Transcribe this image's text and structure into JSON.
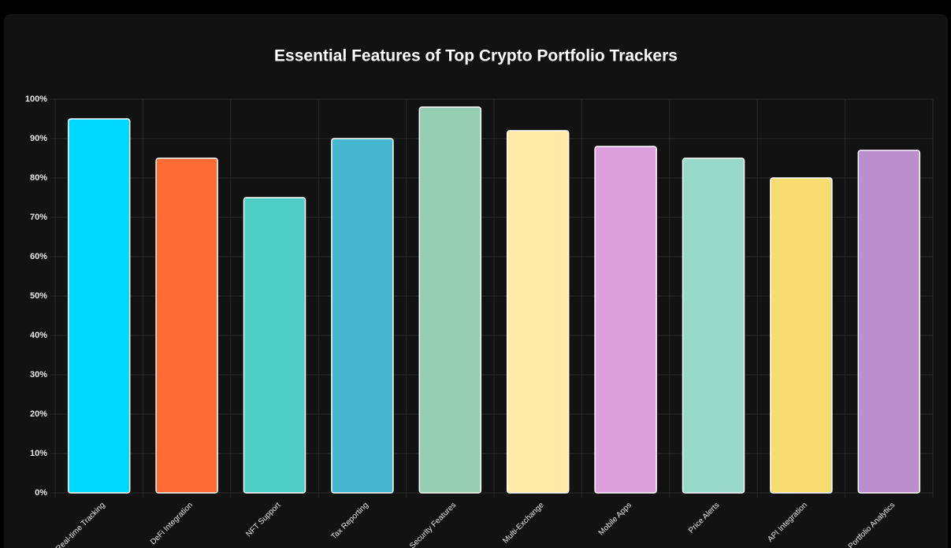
{
  "chart_data": {
    "type": "bar",
    "title": "Essential Features of Top Crypto Portfolio Trackers",
    "categories": [
      "Real-time Tracking",
      "DeFi Integration",
      "NFT Support",
      "Tax Reporting",
      "Security Features",
      "Multi-Exchange",
      "Mobile Apps",
      "Price Alerts",
      "API Integration",
      "Portfolio Analytics"
    ],
    "values": [
      95,
      85,
      75,
      90,
      98,
      92,
      88,
      85,
      80,
      87
    ],
    "colors": [
      "#00d8ff",
      "#ff6b35",
      "#4ecdc4",
      "#45b7d1",
      "#96ceb4",
      "#ffeaa7",
      "#dda0dd",
      "#98d8c8",
      "#f7dc6f",
      "#bb8fce"
    ],
    "ylim": [
      0,
      100
    ],
    "yticks": [
      {
        "value": 0,
        "label": "0%"
      },
      {
        "value": 10,
        "label": "10%"
      },
      {
        "value": 20,
        "label": "20%"
      },
      {
        "value": 30,
        "label": "30%"
      },
      {
        "value": 40,
        "label": "40%"
      },
      {
        "value": 50,
        "label": "50%"
      },
      {
        "value": 60,
        "label": "60%"
      },
      {
        "value": 70,
        "label": "70%"
      },
      {
        "value": 80,
        "label": "80%"
      },
      {
        "value": 90,
        "label": "90%"
      },
      {
        "value": 100,
        "label": "100%"
      }
    ],
    "grid": true
  }
}
